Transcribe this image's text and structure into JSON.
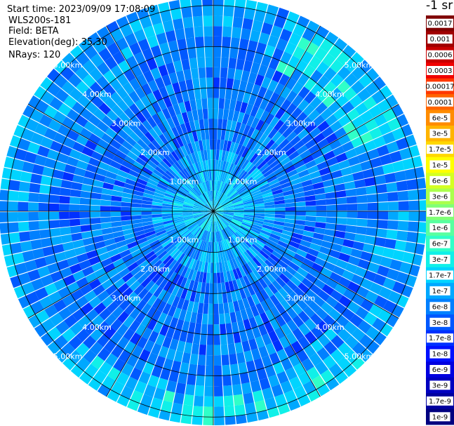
{
  "header": {
    "start_time": "Start time: 2023/09/09 17:08:09",
    "instrument": "WLS200s-181",
    "field": "Field: BETA",
    "elevation": "Elevation(deg): 35.30",
    "nrays": "NRays: 120"
  },
  "units_label": "-1 sr",
  "chart_data": {
    "type": "heatmap",
    "projection": "polar PPI scan",
    "field": "BETA",
    "elevation_deg": 35.3,
    "n_rays": 120,
    "max_range_km": 5.2,
    "range_ring_labels": [
      "1.00km",
      "2.00km",
      "3.00km",
      "4.00km",
      "5.00km"
    ],
    "range_rings_km": [
      1,
      2,
      3,
      4,
      5
    ],
    "grid": true,
    "legend_placement": "right",
    "colorbar": {
      "labels": [
        "0.0017",
        "0.001",
        "0.0006",
        "0.0003",
        "0.00017",
        "0.0001",
        "6e-5",
        "3e-5",
        "1.7e-5",
        "1e-5",
        "6e-6",
        "3e-6",
        "1.7e-6",
        "1e-6",
        "6e-7",
        "3e-7",
        "1.7e-7",
        "1e-7",
        "6e-8",
        "3e-8",
        "1.7e-8",
        "1e-8",
        "6e-9",
        "3e-9",
        "1.7e-9",
        "1e-9"
      ],
      "colors": [
        "#800000",
        "#a00000",
        "#c80000",
        "#f00000",
        "#ff3800",
        "#ff6400",
        "#ff8c00",
        "#ffb400",
        "#ffd800",
        "#ffff00",
        "#d4ff22",
        "#aaff4c",
        "#80ff76",
        "#58ffa0",
        "#30ffc8",
        "#10f0e8",
        "#00d4ff",
        "#00a8ff",
        "#0080ff",
        "#0058ff",
        "#0030ff",
        "#0010ff",
        "#0000e0",
        "#0000c0",
        "#0000a0",
        "#000080"
      ],
      "scale": "log"
    },
    "typical_values": {
      "inner_0_1_5km": "1.7e-7",
      "middle_1_5_4km": "3e-8",
      "outer_band_4_5_5km": "1e-7",
      "enhanced_NE_and_S_arcs": "3e-7"
    }
  }
}
